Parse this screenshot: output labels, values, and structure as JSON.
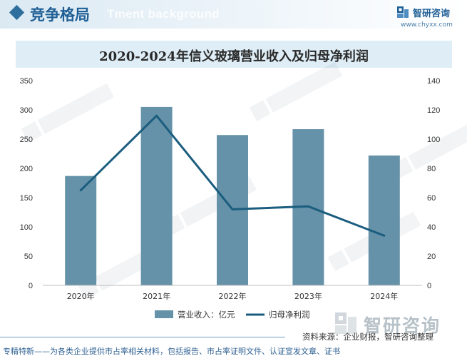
{
  "header": {
    "title": "竞争格局",
    "watermark": "Tment background",
    "brand_name": "智研咨询",
    "brand_url": "www.chyxx.com"
  },
  "chart_data": {
    "type": "bar",
    "title": "2020-2024年信义玻璃营业收入及归母净利润",
    "categories": [
      "2020年",
      "2021年",
      "2022年",
      "2023年",
      "2024年"
    ],
    "series": [
      {
        "name": "营业收入：亿元",
        "type": "bar",
        "axis": "left",
        "color": "#6592a8",
        "values": [
          187,
          305,
          257,
          267,
          222
        ]
      },
      {
        "name": "归母净利润",
        "type": "line",
        "axis": "right",
        "color": "#1b5d7f",
        "values": [
          65,
          116,
          52,
          54,
          34
        ]
      }
    ],
    "y_left": {
      "min": 0,
      "max": 350,
      "ticks": [
        0,
        50,
        100,
        150,
        200,
        250,
        300,
        350
      ]
    },
    "y_right": {
      "min": 0,
      "max": 140,
      "ticks": [
        0,
        20,
        40,
        60,
        80,
        100,
        120,
        140
      ]
    },
    "grid": false,
    "legend_position": "bottom"
  },
  "footer": {
    "source": "资料来源：企业财报，智研咨询整理",
    "tagline": "专精特新——为各类企业提供市占率相关材料，包括报告、市占率证明文件、认证宣发文章、证书",
    "logo_text": "智研咨询"
  },
  "colors": {
    "accent": "#1f5f95",
    "title_bar": "#deedf6",
    "bar": "#6592a8",
    "line": "#1b5d7f"
  }
}
